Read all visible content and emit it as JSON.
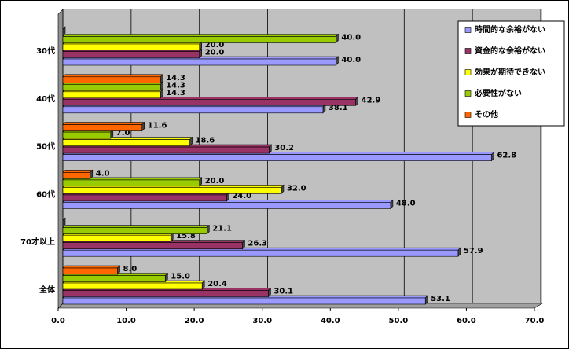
{
  "chart_data": {
    "type": "barh",
    "categories": [
      "30代",
      "40代",
      "50代",
      "60代",
      "70才以上",
      "全体"
    ],
    "series": [
      {
        "name": "時間的な余裕がない",
        "color": "#9999ff",
        "values": [
          40.0,
          38.1,
          62.8,
          48.0,
          57.9,
          53.1
        ],
        "value_labels": [
          "40.0",
          "38.1",
          "62.8",
          "48.0",
          "57.9",
          "53.1"
        ]
      },
      {
        "name": "資金的な余裕がない",
        "color": "#993366",
        "values": [
          20.0,
          42.9,
          30.2,
          24.0,
          26.3,
          30.1
        ],
        "value_labels": [
          "20.0",
          "42.9",
          "30.2",
          "24.0",
          "26.3",
          "30.1"
        ]
      },
      {
        "name": "効果が期待できない",
        "color": "#ffff00",
        "values": [
          20.0,
          14.3,
          18.6,
          32.0,
          15.8,
          20.4
        ],
        "value_labels": [
          "20.0",
          "14.3",
          "18.6",
          "32.0",
          "15.8",
          "20.4"
        ]
      },
      {
        "name": "必要性がない",
        "color": "#99cc00",
        "values": [
          40.0,
          14.3,
          7.0,
          20.0,
          21.1,
          15.0
        ],
        "value_labels": [
          "40.0",
          "14.3",
          "7.0",
          "20.0",
          "21.1",
          "15.0"
        ]
      },
      {
        "name": "その他",
        "color": "#ff6600",
        "values": [
          0,
          14.3,
          11.6,
          4.0,
          0,
          8.0
        ],
        "value_labels": [
          null,
          "14.3",
          "11.6",
          "4.0",
          null,
          "8.0"
        ]
      }
    ],
    "xlim": [
      0,
      70
    ],
    "xticks": [
      {
        "value": 0,
        "label": "0.0"
      },
      {
        "value": 10,
        "label": "10.0"
      },
      {
        "value": 20,
        "label": "20.0"
      },
      {
        "value": 30,
        "label": "30.0"
      },
      {
        "value": 40,
        "label": "40.0"
      },
      {
        "value": 50,
        "label": "50.0"
      },
      {
        "value": 60,
        "label": "60.0"
      },
      {
        "value": 70,
        "label": "70.0"
      }
    ],
    "grid": true,
    "legend": "top-right"
  }
}
